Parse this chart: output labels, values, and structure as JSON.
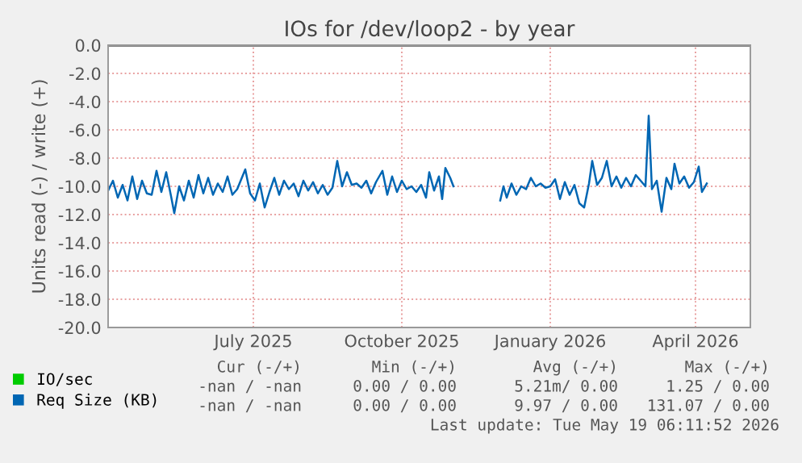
{
  "chart_data": {
    "type": "line",
    "title": "IOs for /dev/loop2 - by year",
    "ylabel": "Units read (-) / write (+)",
    "x": [
      "2025-04-02",
      "2025-04-05",
      "2025-04-08",
      "2025-04-11",
      "2025-04-14",
      "2025-04-17",
      "2025-04-20",
      "2025-04-23",
      "2025-04-26",
      "2025-04-29",
      "2025-05-02",
      "2025-05-05",
      "2025-05-08",
      "2025-05-11",
      "2025-05-13",
      "2025-05-16",
      "2025-05-19",
      "2025-05-22",
      "2025-05-25",
      "2025-05-28",
      "2025-05-31",
      "2025-06-03",
      "2025-06-06",
      "2025-06-09",
      "2025-06-12",
      "2025-06-15",
      "2025-06-18",
      "2025-06-21",
      "2025-06-26",
      "2025-06-29",
      "2025-07-02",
      "2025-07-05",
      "2025-07-08",
      "2025-07-11",
      "2025-07-14",
      "2025-07-17",
      "2025-07-20",
      "2025-07-23",
      "2025-07-26",
      "2025-07-29",
      "2025-08-01",
      "2025-08-04",
      "2025-08-07",
      "2025-08-10",
      "2025-08-13",
      "2025-08-16",
      "2025-08-19",
      "2025-08-22",
      "2025-08-25",
      "2025-08-28",
      "2025-08-31",
      "2025-09-03",
      "2025-09-06",
      "2025-09-09",
      "2025-09-12",
      "2025-09-15",
      "2025-09-19",
      "2025-09-22",
      "2025-09-25",
      "2025-09-28",
      "2025-10-01",
      "2025-10-04",
      "2025-10-07",
      "2025-10-10",
      "2025-10-13",
      "2025-10-16",
      "2025-10-18",
      "2025-10-21",
      "2025-10-24",
      "2025-10-26",
      "2025-10-28",
      "2025-10-31",
      "2025-11-02",
      "2025-11-17",
      "2025-12-01",
      "2025-12-03",
      "2025-12-05",
      "2025-12-08",
      "2025-12-11",
      "2025-12-14",
      "2025-12-17",
      "2025-12-20",
      "2025-12-23",
      "2025-12-26",
      "2025-12-29",
      "2026-01-01",
      "2026-01-04",
      "2026-01-07",
      "2026-01-10",
      "2026-01-13",
      "2026-01-16",
      "2026-01-19",
      "2026-01-22",
      "2026-01-25",
      "2026-01-27",
      "2026-01-30",
      "2026-02-02",
      "2026-02-05",
      "2026-02-08",
      "2026-02-11",
      "2026-02-14",
      "2026-02-17",
      "2026-02-20",
      "2026-02-23",
      "2026-02-26",
      "2026-03-01",
      "2026-03-03",
      "2026-03-05",
      "2026-03-08",
      "2026-03-11",
      "2026-03-14",
      "2026-03-17",
      "2026-03-19",
      "2026-03-22",
      "2026-03-25",
      "2026-03-28",
      "2026-03-31",
      "2026-04-03",
      "2026-04-05",
      "2026-04-08"
    ],
    "series": [
      {
        "name": "IO/sec",
        "color": "#00cc00",
        "values": [
          null,
          null,
          null,
          null,
          null,
          null,
          null,
          null,
          null,
          null,
          null,
          null,
          null,
          null,
          null,
          null,
          null,
          null,
          null,
          null,
          null,
          null,
          null,
          null,
          null,
          null,
          null,
          null,
          null,
          null,
          null,
          null,
          null,
          null,
          null,
          null,
          null,
          null,
          null,
          null,
          null,
          null,
          null,
          null,
          null,
          null,
          null,
          null,
          null,
          null,
          null,
          null,
          null,
          null,
          null,
          null,
          null,
          null,
          null,
          null,
          null,
          null,
          null,
          null,
          null,
          null,
          null,
          null,
          null,
          null,
          null,
          null,
          null,
          null,
          null,
          null,
          null,
          null,
          null,
          null,
          null,
          null,
          null,
          null,
          null,
          null,
          null,
          null,
          null,
          null,
          null,
          null,
          null,
          null,
          null,
          null,
          null,
          null,
          null,
          null,
          null,
          null,
          null,
          null,
          null,
          null,
          null,
          null,
          null,
          null,
          null,
          null,
          null,
          null,
          null,
          null,
          null,
          null,
          null,
          null
        ]
      },
      {
        "name": "Req Size (KB)",
        "color": "#0066b3",
        "values": [
          -10.3,
          -9.6,
          -10.8,
          -9.9,
          -11.0,
          -9.3,
          -10.9,
          -9.6,
          -10.5,
          -10.6,
          -8.9,
          -10.4,
          -9.0,
          -10.7,
          -11.9,
          -10.0,
          -11.0,
          -9.6,
          -10.8,
          -9.2,
          -10.5,
          -9.4,
          -10.6,
          -9.8,
          -10.4,
          -9.3,
          -10.6,
          -10.2,
          -8.8,
          -10.5,
          -11.0,
          -9.8,
          -11.5,
          -10.4,
          -9.4,
          -10.6,
          -9.6,
          -10.2,
          -9.8,
          -10.7,
          -9.6,
          -10.3,
          -9.7,
          -10.5,
          -9.9,
          -10.6,
          -10.1,
          -8.2,
          -10.0,
          -9.0,
          -9.9,
          -9.8,
          -10.1,
          -9.6,
          -10.5,
          -9.7,
          -8.9,
          -10.6,
          -9.3,
          -10.4,
          -9.6,
          -10.2,
          -10.0,
          -10.4,
          -9.9,
          -10.8,
          -9.0,
          -10.3,
          -9.3,
          -10.9,
          -8.7,
          -9.4,
          -10.0,
          null,
          -11.0,
          -10.0,
          -10.8,
          -9.8,
          -10.6,
          -10.0,
          -10.2,
          -9.4,
          -10.0,
          -9.8,
          -10.1,
          -10.0,
          -9.5,
          -10.9,
          -9.7,
          -10.6,
          -9.9,
          -11.2,
          -11.5,
          -9.8,
          -8.2,
          -9.9,
          -9.4,
          -8.2,
          -10.0,
          -9.3,
          -10.1,
          -9.4,
          -10.0,
          -9.2,
          -9.6,
          -10.0,
          -5.0,
          -10.2,
          -9.6,
          -11.8,
          -9.4,
          -10.2,
          -8.4,
          -9.8,
          -9.3,
          -10.1,
          -9.7,
          -8.6,
          -10.4,
          -9.8
        ]
      }
    ],
    "xlim": [
      "2025-04-02",
      "2026-05-05"
    ],
    "xticks": [
      {
        "value": "2025-07-01",
        "label": "July 2025"
      },
      {
        "value": "2025-10-01",
        "label": "October 2025"
      },
      {
        "value": "2026-01-01",
        "label": "January 2026"
      },
      {
        "value": "2026-04-01",
        "label": "April 2026"
      }
    ],
    "ylim": [
      -20,
      0
    ],
    "yticks": [
      {
        "value": -20,
        "label": "-20.0"
      },
      {
        "value": -18,
        "label": "-18.0"
      },
      {
        "value": -16,
        "label": "-16.0"
      },
      {
        "value": -14,
        "label": "-14.0"
      },
      {
        "value": -12,
        "label": "-12.0"
      },
      {
        "value": -10,
        "label": "-10.0"
      },
      {
        "value": -8,
        "label": "-8.0"
      },
      {
        "value": -6,
        "label": "-6.0"
      },
      {
        "value": -4,
        "label": "-4.0"
      },
      {
        "value": -2,
        "label": "-2.0"
      },
      {
        "value": 0,
        "label": "0.0"
      }
    ],
    "grid": true,
    "legend": "bottom",
    "line_style": "solid",
    "marker": "none",
    "annotations": [
      "Cur (-/+)",
      "Min (-/+)",
      "Avg (-/+)",
      "Max (-/+)",
      "-nan / -nan",
      "0.00 / 0.00",
      "5.21m/ 0.00",
      "1.25 / 0.00",
      "-nan / -nan",
      "0.00 / 0.00",
      "9.97 / 0.00",
      "131.07 / 0.00",
      "Last update: Tue May 19 06:11:52 2026"
    ]
  }
}
